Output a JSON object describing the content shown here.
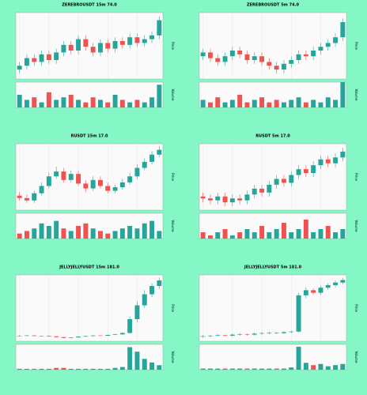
{
  "chart_data": [
    {
      "type": "candlestick",
      "title": "ZEREBROUSDT 15m 74.0",
      "ylabel": "Price",
      "vlabel": "Volume",
      "up_color": "#26a69a",
      "down_color": "#ef5350",
      "grid": true,
      "open": [
        0.027,
        0.0272,
        0.0276,
        0.0274,
        0.0278,
        0.0275,
        0.0279,
        0.0283,
        0.028,
        0.0286,
        0.0282,
        0.0279,
        0.0284,
        0.0281,
        0.0285,
        0.0283,
        0.0287,
        0.0284,
        0.0286,
        0.0288
      ],
      "high": [
        0.0274,
        0.0278,
        0.0278,
        0.028,
        0.028,
        0.0281,
        0.0285,
        0.0285,
        0.0288,
        0.0288,
        0.0284,
        0.0286,
        0.0286,
        0.0287,
        0.0287,
        0.0289,
        0.0289,
        0.0288,
        0.029,
        0.0298
      ],
      "low": [
        0.0268,
        0.027,
        0.0272,
        0.0272,
        0.0273,
        0.0273,
        0.0277,
        0.0278,
        0.0278,
        0.028,
        0.0277,
        0.0277,
        0.0279,
        0.0279,
        0.0281,
        0.0281,
        0.0282,
        0.0282,
        0.0284,
        0.0286
      ],
      "close": [
        0.0272,
        0.0276,
        0.0274,
        0.0278,
        0.0275,
        0.0279,
        0.0283,
        0.028,
        0.0286,
        0.0282,
        0.0279,
        0.0284,
        0.0281,
        0.0285,
        0.0283,
        0.0287,
        0.0284,
        0.0286,
        0.0288,
        0.0296
      ],
      "volume": [
        5,
        3,
        4,
        2,
        6,
        3,
        4,
        5,
        3,
        2,
        4,
        3,
        2,
        5,
        3,
        2,
        3,
        2,
        4,
        9
      ],
      "ylim": [
        0.0265,
        0.03
      ],
      "vlim": [
        0,
        10
      ]
    },
    {
      "type": "candlestick",
      "title": "ZEREBROUSDT 5m 74.0",
      "ylabel": "Price",
      "vlabel": "Volume",
      "up_color": "#26a69a",
      "down_color": "#ef5350",
      "grid": true,
      "open": [
        0.0282,
        0.0284,
        0.0281,
        0.0279,
        0.0282,
        0.0285,
        0.0283,
        0.028,
        0.0282,
        0.0279,
        0.0277,
        0.0275,
        0.0278,
        0.028,
        0.0283,
        0.0282,
        0.0285,
        0.0287,
        0.0289,
        0.0292
      ],
      "high": [
        0.0286,
        0.0286,
        0.0283,
        0.0284,
        0.0287,
        0.0287,
        0.0285,
        0.0284,
        0.0284,
        0.0281,
        0.0279,
        0.028,
        0.0282,
        0.0285,
        0.0285,
        0.0287,
        0.0289,
        0.0291,
        0.0294,
        0.0302
      ],
      "low": [
        0.028,
        0.0279,
        0.0277,
        0.0277,
        0.028,
        0.0281,
        0.0278,
        0.0278,
        0.0277,
        0.0275,
        0.0273,
        0.0273,
        0.0276,
        0.0278,
        0.028,
        0.028,
        0.0283,
        0.0285,
        0.0287,
        0.029
      ],
      "close": [
        0.0284,
        0.0281,
        0.0279,
        0.0282,
        0.0285,
        0.0283,
        0.028,
        0.0282,
        0.0279,
        0.0277,
        0.0275,
        0.0278,
        0.028,
        0.0283,
        0.0282,
        0.0285,
        0.0287,
        0.0289,
        0.0292,
        0.03
      ],
      "volume": [
        3,
        2,
        4,
        2,
        3,
        5,
        2,
        3,
        4,
        2,
        3,
        2,
        3,
        4,
        2,
        3,
        2,
        4,
        3,
        10
      ],
      "ylim": [
        0.027,
        0.0305
      ],
      "vlim": [
        0,
        10
      ]
    },
    {
      "type": "candlestick",
      "title": "RUSDT 15m 17.0",
      "ylabel": "Price",
      "vlabel": "Volume",
      "up_color": "#26a69a",
      "down_color": "#ef5350",
      "grid": true,
      "open": [
        0.0132,
        0.013,
        0.0128,
        0.0134,
        0.014,
        0.0148,
        0.0152,
        0.0145,
        0.015,
        0.0142,
        0.0138,
        0.0145,
        0.014,
        0.0136,
        0.0139,
        0.0143,
        0.0148,
        0.0155,
        0.016,
        0.0166
      ],
      "high": [
        0.0135,
        0.0133,
        0.0136,
        0.0143,
        0.0151,
        0.0156,
        0.0155,
        0.0153,
        0.0153,
        0.0145,
        0.0148,
        0.0148,
        0.0143,
        0.0141,
        0.0146,
        0.0151,
        0.0158,
        0.0163,
        0.0169,
        0.0173
      ],
      "low": [
        0.0128,
        0.0126,
        0.0126,
        0.0132,
        0.0138,
        0.0146,
        0.0143,
        0.0143,
        0.014,
        0.0135,
        0.0136,
        0.0138,
        0.0134,
        0.0134,
        0.0137,
        0.0141,
        0.0146,
        0.0153,
        0.0158,
        0.0164
      ],
      "close": [
        0.013,
        0.0128,
        0.0134,
        0.014,
        0.0148,
        0.0152,
        0.0145,
        0.015,
        0.0142,
        0.0138,
        0.0145,
        0.014,
        0.0136,
        0.0139,
        0.0143,
        0.0148,
        0.0155,
        0.016,
        0.0166,
        0.017
      ],
      "volume": [
        2,
        3,
        4,
        6,
        5,
        7,
        4,
        3,
        5,
        6,
        4,
        3,
        2,
        3,
        4,
        5,
        4,
        6,
        7,
        3
      ],
      "ylim": [
        0.012,
        0.0175
      ],
      "vlim": [
        0,
        10
      ]
    },
    {
      "type": "candlestick",
      "title": "RUSDT 5m 17.0",
      "ylabel": "Price",
      "vlabel": "Volume",
      "up_color": "#26a69a",
      "down_color": "#ef5350",
      "grid": true,
      "open": [
        0.0151,
        0.015,
        0.0149,
        0.0151,
        0.0148,
        0.015,
        0.0149,
        0.0152,
        0.0155,
        0.0153,
        0.0157,
        0.016,
        0.0158,
        0.0162,
        0.0165,
        0.0163,
        0.0167,
        0.017,
        0.0168,
        0.0171
      ],
      "high": [
        0.0153,
        0.0152,
        0.0153,
        0.0153,
        0.0152,
        0.0152,
        0.0154,
        0.0157,
        0.0157,
        0.0159,
        0.0162,
        0.0162,
        0.0164,
        0.0167,
        0.0167,
        0.0169,
        0.0172,
        0.0172,
        0.0173,
        0.0176
      ],
      "low": [
        0.0148,
        0.0147,
        0.0147,
        0.0146,
        0.0146,
        0.0147,
        0.0147,
        0.015,
        0.0151,
        0.0151,
        0.0155,
        0.0156,
        0.0156,
        0.016,
        0.0161,
        0.0161,
        0.0165,
        0.0166,
        0.0166,
        0.0169
      ],
      "close": [
        0.015,
        0.0149,
        0.0151,
        0.0148,
        0.015,
        0.0149,
        0.0152,
        0.0155,
        0.0153,
        0.0157,
        0.016,
        0.0158,
        0.0162,
        0.0165,
        0.0163,
        0.0167,
        0.017,
        0.0168,
        0.0171,
        0.0174
      ],
      "volume": [
        2,
        1,
        2,
        3,
        1,
        2,
        3,
        2,
        4,
        2,
        3,
        5,
        2,
        3,
        6,
        2,
        3,
        4,
        2,
        3
      ],
      "ylim": [
        0.0144,
        0.0178
      ],
      "vlim": [
        0,
        8
      ]
    },
    {
      "type": "candlestick",
      "title": "JELLYJELLYUSDT 15m 181.0",
      "ylabel": "Price",
      "vlabel": "Volume",
      "up_color": "#26a69a",
      "down_color": "#ef5350",
      "grid": true,
      "open": [
        0.0099,
        0.01,
        0.0101,
        0.0099,
        0.01,
        0.0098,
        0.0095,
        0.0092,
        0.0094,
        0.0097,
        0.0099,
        0.0101,
        0.01,
        0.0103,
        0.0105,
        0.011,
        0.016,
        0.021,
        0.025,
        0.028
      ],
      "high": [
        0.0102,
        0.0103,
        0.0102,
        0.0101,
        0.0101,
        0.0099,
        0.0096,
        0.0095,
        0.0098,
        0.01,
        0.0102,
        0.0102,
        0.0104,
        0.0107,
        0.0113,
        0.017,
        0.0225,
        0.0265,
        0.029,
        0.031
      ],
      "low": [
        0.0097,
        0.0098,
        0.0098,
        0.0097,
        0.0097,
        0.0094,
        0.009,
        0.0091,
        0.0093,
        0.0096,
        0.0098,
        0.0099,
        0.0099,
        0.0102,
        0.0104,
        0.0108,
        0.015,
        0.02,
        0.024,
        0.027
      ],
      "close": [
        0.01,
        0.0101,
        0.0099,
        0.01,
        0.0098,
        0.0095,
        0.0092,
        0.0094,
        0.0097,
        0.0099,
        0.0101,
        0.01,
        0.0103,
        0.0105,
        0.011,
        0.016,
        0.021,
        0.025,
        0.028,
        0.03
      ],
      "volume": [
        1,
        1,
        1,
        1,
        1,
        2,
        2,
        1,
        1,
        1,
        1,
        1,
        1,
        2,
        3,
        25,
        20,
        12,
        8,
        5
      ],
      "ylim": [
        0.008,
        0.032
      ],
      "vlim": [
        0,
        28
      ]
    },
    {
      "type": "candlestick",
      "title": "JELLYJELLYUSDT 5m 181.0",
      "ylabel": "Price",
      "vlabel": "Volume",
      "up_color": "#26a69a",
      "down_color": "#ef5350",
      "grid": true,
      "open": [
        0.0199,
        0.02,
        0.0201,
        0.0202,
        0.0201,
        0.0203,
        0.0204,
        0.0203,
        0.0205,
        0.0206,
        0.0207,
        0.0206,
        0.0208,
        0.0209,
        0.028,
        0.029,
        0.0285,
        0.0295,
        0.03,
        0.0305
      ],
      "high": [
        0.0202,
        0.0203,
        0.0204,
        0.0203,
        0.0205,
        0.0206,
        0.0205,
        0.0207,
        0.0208,
        0.0209,
        0.0208,
        0.021,
        0.0211,
        0.0285,
        0.0296,
        0.0294,
        0.0299,
        0.0304,
        0.0309,
        0.0314
      ],
      "low": [
        0.0197,
        0.0198,
        0.0199,
        0.0199,
        0.0199,
        0.0201,
        0.0201,
        0.0201,
        0.0203,
        0.0204,
        0.0204,
        0.0204,
        0.0206,
        0.0207,
        0.0275,
        0.0282,
        0.0281,
        0.0291,
        0.0296,
        0.0301
      ],
      "close": [
        0.02,
        0.0201,
        0.0202,
        0.0201,
        0.0203,
        0.0204,
        0.0203,
        0.0205,
        0.0206,
        0.0207,
        0.0206,
        0.0208,
        0.0209,
        0.028,
        0.029,
        0.0285,
        0.0295,
        0.03,
        0.0305,
        0.031
      ],
      "volume": [
        1,
        1,
        1,
        1,
        1,
        1,
        1,
        1,
        1,
        1,
        1,
        1,
        2,
        20,
        6,
        4,
        5,
        3,
        4,
        5
      ],
      "ylim": [
        0.019,
        0.032
      ],
      "vlim": [
        0,
        22
      ]
    }
  ]
}
